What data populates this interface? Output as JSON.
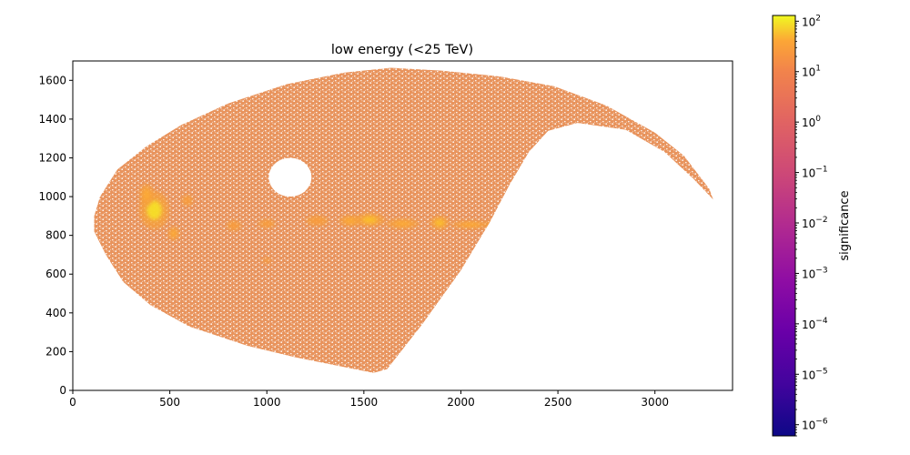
{
  "chart_data": {
    "type": "heatmap",
    "title": "low energy (<25 TeV)",
    "xlabel": "",
    "ylabel": "",
    "xlim": [
      0,
      3400
    ],
    "ylim": [
      0,
      1700
    ],
    "x_ticks": [
      0,
      500,
      1000,
      1500,
      2000,
      2500,
      3000
    ],
    "y_ticks": [
      0,
      200,
      400,
      600,
      800,
      1000,
      1200,
      1400,
      1600
    ],
    "grid": false,
    "colormap": "plasma",
    "colorbar": {
      "label": "significance",
      "scale": "log",
      "range": [
        6e-07,
        130
      ],
      "ticks": [
        {
          "value": 1e-06,
          "base": "10",
          "exp": "−6"
        },
        {
          "value": 1e-05,
          "base": "10",
          "exp": "−5"
        },
        {
          "value": 0.0001,
          "base": "10",
          "exp": "−4"
        },
        {
          "value": 0.001,
          "base": "10",
          "exp": "−3"
        },
        {
          "value": 0.01,
          "base": "10",
          "exp": "−2"
        },
        {
          "value": 0.1,
          "base": "10",
          "exp": "−1"
        },
        {
          "value": 1,
          "base": "10",
          "exp": "0"
        },
        {
          "value": 10,
          "base": "10",
          "exp": "1"
        },
        {
          "value": 100,
          "base": "10",
          "exp": "2"
        }
      ]
    },
    "sky_region": {
      "outline": [
        [
          110,
          900
        ],
        [
          140,
          1000
        ],
        [
          230,
          1140
        ],
        [
          380,
          1260
        ],
        [
          560,
          1370
        ],
        [
          800,
          1480
        ],
        [
          1100,
          1580
        ],
        [
          1400,
          1640
        ],
        [
          1640,
          1665
        ],
        [
          1900,
          1650
        ],
        [
          2200,
          1620
        ],
        [
          2480,
          1570
        ],
        [
          2750,
          1470
        ],
        [
          3000,
          1330
        ],
        [
          3150,
          1210
        ],
        [
          3280,
          1040
        ],
        [
          3300,
          985
        ],
        [
          3200,
          1090
        ],
        [
          3050,
          1230
        ],
        [
          2850,
          1345
        ],
        [
          2600,
          1380
        ],
        [
          2450,
          1340
        ],
        [
          2350,
          1230
        ],
        [
          2250,
          1060
        ],
        [
          2150,
          870
        ],
        [
          2000,
          620
        ],
        [
          1800,
          340
        ],
        [
          1620,
          110
        ],
        [
          1550,
          90
        ],
        [
          1400,
          120
        ],
        [
          1150,
          170
        ],
        [
          900,
          230
        ],
        [
          600,
          330
        ],
        [
          400,
          440
        ],
        [
          260,
          560
        ],
        [
          170,
          700
        ],
        [
          110,
          820
        ]
      ],
      "hole": {
        "x": 1120,
        "y": 1100,
        "rx": 110,
        "ry": 100
      },
      "base_color": "#e8935c",
      "gap_color": "#ffffff"
    },
    "hotspots": [
      {
        "x": 420,
        "y": 930,
        "sx": 55,
        "sy": 70,
        "value": 30
      },
      {
        "x": 380,
        "y": 1010,
        "sx": 25,
        "sy": 40,
        "value": 12
      },
      {
        "x": 520,
        "y": 810,
        "sx": 20,
        "sy": 25,
        "value": 10
      },
      {
        "x": 590,
        "y": 980,
        "sx": 20,
        "sy": 20,
        "value": 5
      },
      {
        "x": 830,
        "y": 850,
        "sx": 25,
        "sy": 18,
        "value": 5
      },
      {
        "x": 1000,
        "y": 860,
        "sx": 30,
        "sy": 15,
        "value": 4
      },
      {
        "x": 1260,
        "y": 875,
        "sx": 40,
        "sy": 18,
        "value": 6
      },
      {
        "x": 1430,
        "y": 875,
        "sx": 40,
        "sy": 20,
        "value": 8
      },
      {
        "x": 1530,
        "y": 880,
        "sx": 55,
        "sy": 25,
        "value": 20
      },
      {
        "x": 1700,
        "y": 860,
        "sx": 60,
        "sy": 18,
        "value": 10
      },
      {
        "x": 1890,
        "y": 865,
        "sx": 35,
        "sy": 25,
        "value": 18
      },
      {
        "x": 2050,
        "y": 855,
        "sx": 70,
        "sy": 14,
        "value": 8
      },
      {
        "x": 2160,
        "y": 855,
        "sx": 25,
        "sy": 12,
        "value": 5
      },
      {
        "x": 1000,
        "y": 670,
        "sx": 15,
        "sy": 10,
        "value": 3
      }
    ]
  }
}
